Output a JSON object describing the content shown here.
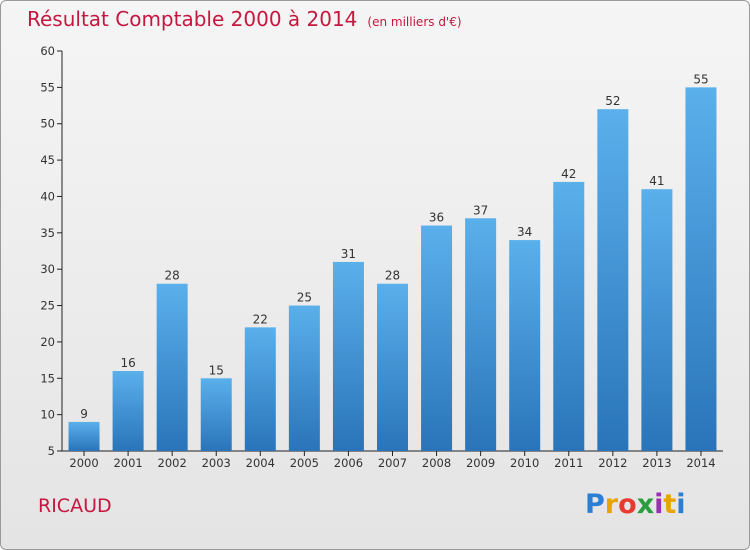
{
  "title": "Résultat Comptable 2000 à 2014",
  "subtitle": "(en milliers d'€)",
  "commune": "RICAUD",
  "logo": {
    "text": "Proxiti",
    "colors": [
      "#2a7fd4",
      "#e8a400",
      "#e83a2f",
      "#2a9d3c",
      "#9b2fb8",
      "#e8a400",
      "#2a7fd4"
    ]
  },
  "colors": {
    "accent": "#c5173f",
    "bar_top": "#5ab0eb",
    "bar_bottom": "#2a74b9"
  },
  "chart_data": {
    "type": "bar",
    "categories": [
      "2000",
      "2001",
      "2002",
      "2003",
      "2004",
      "2005",
      "2006",
      "2007",
      "2008",
      "2009",
      "2010",
      "2011",
      "2012",
      "2013",
      "2014"
    ],
    "values": [
      9,
      16,
      28,
      15,
      22,
      25,
      31,
      28,
      36,
      37,
      34,
      42,
      52,
      41,
      55
    ],
    "ylim": [
      5,
      60
    ],
    "yticks": [
      5,
      10,
      15,
      20,
      25,
      30,
      35,
      40,
      45,
      50,
      55,
      60
    ],
    "grid": false
  }
}
